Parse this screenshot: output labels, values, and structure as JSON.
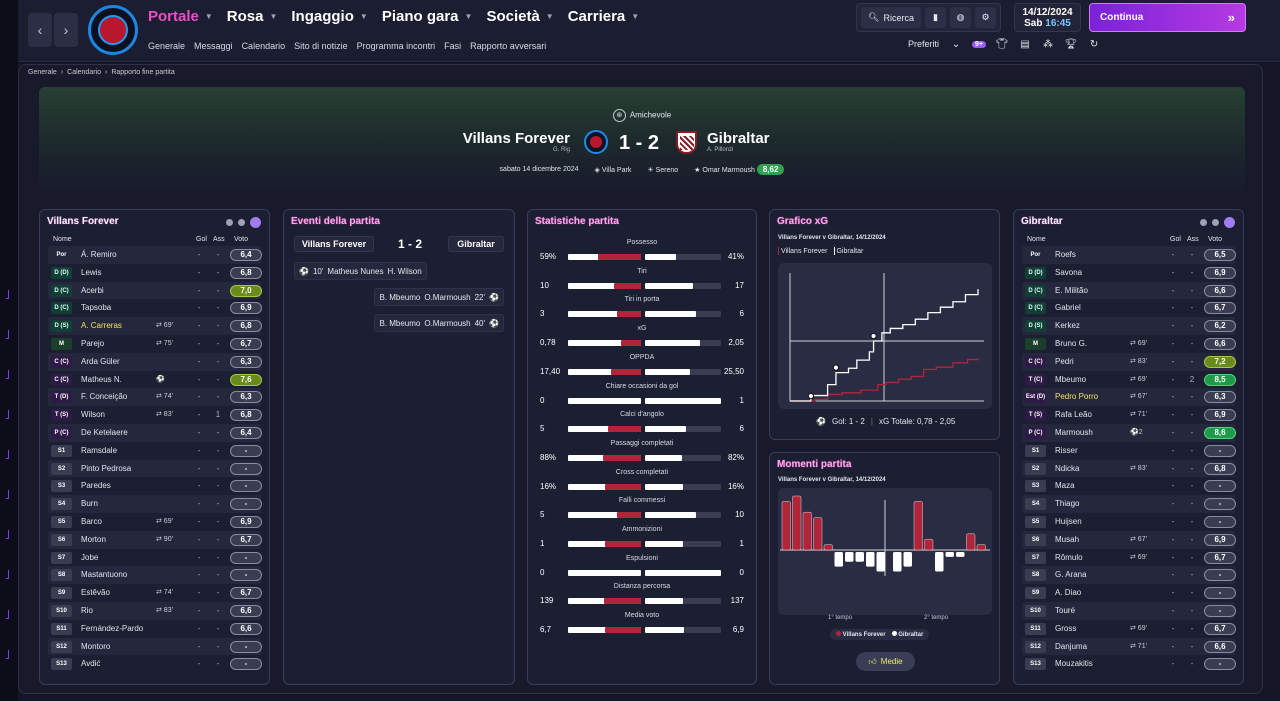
{
  "nav": {
    "back": "‹",
    "forward": "›",
    "menu": [
      "Portale",
      "Rosa",
      "Ingaggio",
      "Piano gara",
      "Società",
      "Carriera"
    ],
    "submenu": [
      "Generale",
      "Messaggi",
      "Calendario",
      "Sito di notizie",
      "Programma incontri",
      "Fasi",
      "Rapporto avversari"
    ],
    "search_label": "Ricerca",
    "date": "14/12/2024",
    "day": "Sab",
    "time": "16:45",
    "continue_label": "Continua",
    "favorites_label": "Preferiti",
    "notif_count": "9+"
  },
  "breadcrumb": [
    "Generale",
    "Calendario",
    "Rapporto fine partita"
  ],
  "match": {
    "competition": "Amichevole",
    "home": "Villans Forever",
    "home_manager": "G. Rig",
    "away": "Gibraltar",
    "away_manager": "A. Pillonzi",
    "score": "1 - 2",
    "date": "sabato 14 dicembre 2024",
    "venue": "Villa Park",
    "weather": "Sereno",
    "motm": "Omar Marmoush",
    "motm_rating": "8,62"
  },
  "colors": {
    "accent": "#e94fc9",
    "home": "#b0253a",
    "away": "#ffffff",
    "good": "#1f9a48"
  },
  "home_panel": {
    "title": "Villans Forever",
    "headers": {
      "name": "Nome",
      "goals": "Gol",
      "assists": "Ass",
      "rating": "Voto"
    },
    "players": [
      {
        "pos": "Por",
        "cls": "gk",
        "name": "Á. Remiro",
        "sub": "",
        "g": "-",
        "a": "-",
        "r": "6,4",
        "rc": ""
      },
      {
        "pos": "D (D)",
        "cls": "d",
        "name": "Lewis",
        "sub": "",
        "g": "-",
        "a": "-",
        "r": "6,8",
        "rc": ""
      },
      {
        "pos": "D (C)",
        "cls": "d",
        "name": "Acerbi",
        "sub": "",
        "g": "-",
        "a": "-",
        "r": "7,0",
        "rc": "ok"
      },
      {
        "pos": "D (C)",
        "cls": "d",
        "name": "Tapsoba",
        "sub": "",
        "g": "-",
        "a": "-",
        "r": "6,9",
        "rc": ""
      },
      {
        "pos": "D (S)",
        "cls": "d",
        "name": "A. Carreras",
        "hl": true,
        "sub": "⇄ 69'",
        "g": "-",
        "a": "-",
        "r": "6,8",
        "rc": ""
      },
      {
        "pos": "M",
        "cls": "m",
        "name": "Parejo",
        "sub": "⇄ 75'",
        "g": "-",
        "a": "-",
        "r": "6,7",
        "rc": ""
      },
      {
        "pos": "C (C)",
        "cls": "a",
        "name": "Arda Güler",
        "sub": "",
        "g": "-",
        "a": "-",
        "r": "6,3",
        "rc": ""
      },
      {
        "pos": "C (C)",
        "cls": "a",
        "name": "Matheus N.",
        "sub": "⚽",
        "g": "-",
        "a": "-",
        "r": "7,6",
        "rc": "ok"
      },
      {
        "pos": "T (D)",
        "cls": "a",
        "name": "F. Conceição",
        "sub": "⇄ 74'",
        "g": "-",
        "a": "-",
        "r": "6,3",
        "rc": ""
      },
      {
        "pos": "T (S)",
        "cls": "a",
        "name": "Wilson",
        "sub": "⇄ 83'",
        "g": "-",
        "a": "1",
        "r": "6,8",
        "rc": ""
      },
      {
        "pos": "P (C)",
        "cls": "a",
        "name": "De Ketelaere",
        "sub": "",
        "g": "-",
        "a": "-",
        "r": "6,4",
        "rc": ""
      },
      {
        "pos": "S1",
        "cls": "sub",
        "name": "Ramsdale",
        "sub": "",
        "g": "-",
        "a": "-",
        "r": "-",
        "rc": ""
      },
      {
        "pos": "S2",
        "cls": "sub",
        "name": "Pinto Pedrosa",
        "sub": "",
        "g": "-",
        "a": "-",
        "r": "-",
        "rc": ""
      },
      {
        "pos": "S3",
        "cls": "sub",
        "name": "Paredes",
        "sub": "",
        "g": "-",
        "a": "-",
        "r": "-",
        "rc": ""
      },
      {
        "pos": "S4",
        "cls": "sub",
        "name": "Burn",
        "sub": "",
        "g": "-",
        "a": "-",
        "r": "-",
        "rc": ""
      },
      {
        "pos": "S5",
        "cls": "sub",
        "name": "Barco",
        "sub": "⇄ 69'",
        "g": "-",
        "a": "-",
        "r": "6,9",
        "rc": ""
      },
      {
        "pos": "S6",
        "cls": "sub",
        "name": "Morton",
        "sub": "⇄ 90'",
        "g": "-",
        "a": "-",
        "r": "6,7",
        "rc": ""
      },
      {
        "pos": "S7",
        "cls": "sub",
        "name": "Jobe",
        "sub": "",
        "g": "-",
        "a": "-",
        "r": "-",
        "rc": ""
      },
      {
        "pos": "S8",
        "cls": "sub",
        "name": "Mastantuono",
        "sub": "",
        "g": "-",
        "a": "-",
        "r": "-",
        "rc": ""
      },
      {
        "pos": "S9",
        "cls": "sub",
        "name": "Estêvão",
        "sub": "⇄ 74'",
        "g": "-",
        "a": "-",
        "r": "6,7",
        "rc": ""
      },
      {
        "pos": "S10",
        "cls": "sub",
        "name": "Rio",
        "sub": "⇄ 83'",
        "g": "-",
        "a": "-",
        "r": "6,6",
        "rc": ""
      },
      {
        "pos": "S11",
        "cls": "sub",
        "name": "Fernández-Pardo",
        "sub": "",
        "g": "-",
        "a": "-",
        "r": "6,6",
        "rc": ""
      },
      {
        "pos": "S12",
        "cls": "sub",
        "name": "Montoro",
        "sub": "",
        "g": "-",
        "a": "-",
        "r": "-",
        "rc": ""
      },
      {
        "pos": "S13",
        "cls": "sub",
        "name": "Avdić",
        "sub": "",
        "g": "-",
        "a": "-",
        "r": "-",
        "rc": ""
      }
    ]
  },
  "away_panel": {
    "title": "Gibraltar",
    "headers": {
      "name": "Nome",
      "goals": "Gol",
      "assists": "Ass",
      "rating": "Voto"
    },
    "players": [
      {
        "pos": "Por",
        "cls": "gk",
        "name": "Roefs",
        "sub": "",
        "g": "-",
        "a": "-",
        "r": "6,5",
        "rc": ""
      },
      {
        "pos": "D (D)",
        "cls": "d",
        "name": "Savona",
        "sub": "",
        "g": "-",
        "a": "-",
        "r": "6,9",
        "rc": ""
      },
      {
        "pos": "D (C)",
        "cls": "d",
        "name": "E. Militão",
        "sub": "",
        "g": "-",
        "a": "-",
        "r": "6,6",
        "rc": ""
      },
      {
        "pos": "D (C)",
        "cls": "d",
        "name": "Gabriel",
        "sub": "",
        "g": "-",
        "a": "-",
        "r": "6,7",
        "rc": ""
      },
      {
        "pos": "D (S)",
        "cls": "d",
        "name": "Kerkez",
        "sub": "",
        "g": "-",
        "a": "-",
        "r": "6,2",
        "rc": ""
      },
      {
        "pos": "M",
        "cls": "m",
        "name": "Bruno G.",
        "sub": "⇄ 69'",
        "g": "-",
        "a": "-",
        "r": "6,6",
        "rc": ""
      },
      {
        "pos": "C (C)",
        "cls": "a",
        "name": "Pedri",
        "sub": "⇄ 83'",
        "g": "-",
        "a": "-",
        "r": "7,2",
        "rc": "ok"
      },
      {
        "pos": "T (C)",
        "cls": "a",
        "name": "Mbeumo",
        "sub": "⇄ 69'",
        "g": "-",
        "a": "2",
        "r": "8,5",
        "rc": "good"
      },
      {
        "pos": "Est (D)",
        "cls": "a",
        "name": "Pedro Porro",
        "hl": true,
        "sub": "⇄ 67'",
        "g": "-",
        "a": "-",
        "r": "6,3",
        "rc": ""
      },
      {
        "pos": "T (S)",
        "cls": "a",
        "name": "Rafa Leão",
        "sub": "⇄ 71'",
        "g": "-",
        "a": "-",
        "r": "6,9",
        "rc": ""
      },
      {
        "pos": "P (C)",
        "cls": "a",
        "name": "Marmoush",
        "sub": "⚽2",
        "g": "-",
        "a": "-",
        "r": "8,6",
        "rc": "good"
      },
      {
        "pos": "S1",
        "cls": "sub",
        "name": "Risser",
        "sub": "",
        "g": "-",
        "a": "-",
        "r": "-",
        "rc": ""
      },
      {
        "pos": "S2",
        "cls": "sub",
        "name": "Ndicka",
        "sub": "⇄ 83'",
        "g": "-",
        "a": "-",
        "r": "6,8",
        "rc": ""
      },
      {
        "pos": "S3",
        "cls": "sub",
        "name": "Maza",
        "sub": "",
        "g": "-",
        "a": "-",
        "r": "-",
        "rc": ""
      },
      {
        "pos": "S4",
        "cls": "sub",
        "name": "Thiago",
        "sub": "",
        "g": "-",
        "a": "-",
        "r": "-",
        "rc": ""
      },
      {
        "pos": "S5",
        "cls": "sub",
        "name": "Huijsen",
        "sub": "",
        "g": "-",
        "a": "-",
        "r": "-",
        "rc": ""
      },
      {
        "pos": "S6",
        "cls": "sub",
        "name": "Musah",
        "sub": "⇄ 67'",
        "g": "-",
        "a": "-",
        "r": "6,9",
        "rc": ""
      },
      {
        "pos": "S7",
        "cls": "sub",
        "name": "Rômulo",
        "sub": "⇄ 69'",
        "g": "-",
        "a": "-",
        "r": "6,7",
        "rc": ""
      },
      {
        "pos": "S8",
        "cls": "sub",
        "name": "G. Arana",
        "sub": "",
        "g": "-",
        "a": "-",
        "r": "-",
        "rc": ""
      },
      {
        "pos": "S9",
        "cls": "sub",
        "name": "A. Diao",
        "sub": "",
        "g": "-",
        "a": "-",
        "r": "-",
        "rc": ""
      },
      {
        "pos": "S10",
        "cls": "sub",
        "name": "Touré",
        "sub": "",
        "g": "-",
        "a": "-",
        "r": "-",
        "rc": ""
      },
      {
        "pos": "S11",
        "cls": "sub",
        "name": "Gross",
        "sub": "⇄ 69'",
        "g": "-",
        "a": "-",
        "r": "6,7",
        "rc": ""
      },
      {
        "pos": "S12",
        "cls": "sub",
        "name": "Danjuma",
        "sub": "⇄ 71'",
        "g": "-",
        "a": "-",
        "r": "6,6",
        "rc": ""
      },
      {
        "pos": "S13",
        "cls": "sub",
        "name": "Mouzakitis",
        "sub": "",
        "g": "-",
        "a": "-",
        "r": "-",
        "rc": ""
      }
    ]
  },
  "events": {
    "title": "Eventi della partita",
    "home": "Villans Forever",
    "away": "Gibraltar",
    "score": "1 - 2",
    "items": [
      {
        "side": "home",
        "minute": "10'",
        "scorer": "Matheus Nunes",
        "assist": "H. Wilson"
      },
      {
        "side": "away",
        "minute": "22'",
        "scorer": "O.Marmoush",
        "assist": "B. Mbeumo"
      },
      {
        "side": "away",
        "minute": "40'",
        "scorer": "O.Marmoush",
        "assist": "B. Mbeumo"
      }
    ]
  },
  "stats": {
    "title": "Statistiche partita",
    "rows": [
      {
        "label": "Possesso",
        "home": "59%",
        "away": "41%",
        "h": 59,
        "a": 41
      },
      {
        "label": "Tiri",
        "home": "10",
        "away": "17",
        "h": 10,
        "a": 17
      },
      {
        "label": "Tiri in porta",
        "home": "3",
        "away": "6",
        "h": 3,
        "a": 6
      },
      {
        "label": "xG",
        "home": "0,78",
        "away": "2,05",
        "h": 0.78,
        "a": 2.05
      },
      {
        "label": "OPPDA",
        "home": "17,40",
        "away": "25,50",
        "h": 17.4,
        "a": 25.5
      },
      {
        "label": "Chiare occasioni da gol",
        "home": "0",
        "away": "1",
        "h": 0,
        "a": 1
      },
      {
        "label": "Calci d'angolo",
        "home": "5",
        "away": "6",
        "h": 5,
        "a": 6
      },
      {
        "label": "Passaggi completati",
        "home": "88%",
        "away": "82%",
        "h": 88,
        "a": 82
      },
      {
        "label": "Cross completati",
        "home": "16%",
        "away": "16%",
        "h": 16,
        "a": 16
      },
      {
        "label": "Falli commessi",
        "home": "5",
        "away": "10",
        "h": 5,
        "a": 10
      },
      {
        "label": "Ammonizioni",
        "home": "1",
        "away": "1",
        "h": 1,
        "a": 1
      },
      {
        "label": "Espulsioni",
        "home": "0",
        "away": "0",
        "h": 0,
        "a": 0
      },
      {
        "label": "Distanza percorsa",
        "home": "139",
        "away": "137",
        "h": 139,
        "a": 137
      },
      {
        "label": "Media voto",
        "home": "6,7",
        "away": "6,9",
        "h": 6.7,
        "a": 6.9
      }
    ]
  },
  "xg": {
    "title": "Grafico xG",
    "subtitle": "Villans Forever v Gibraltar, 14/12/2024",
    "legend_home": "Villans Forever",
    "legend_away": "Gibraltar",
    "goals_label": "Gol: 1 - 2",
    "xg_label": "xG Totale: 0,78  -  2,05"
  },
  "chart_data": [
    {
      "type": "line",
      "title": "Grafico xG",
      "x_range": [
        0,
        90
      ],
      "series": [
        {
          "name": "Villans Forever",
          "color": "#b0253a",
          "points": [
            [
              0,
              0
            ],
            [
              12,
              0.03
            ],
            [
              18,
              0.12
            ],
            [
              25,
              0.15
            ],
            [
              34,
              0.2
            ],
            [
              42,
              0.3
            ],
            [
              46,
              0.34
            ],
            [
              52,
              0.4
            ],
            [
              58,
              0.45
            ],
            [
              64,
              0.58
            ],
            [
              70,
              0.62
            ],
            [
              78,
              0.7
            ],
            [
              85,
              0.76
            ],
            [
              90,
              0.78
            ]
          ]
        },
        {
          "name": "Gibraltar",
          "color": "#ffffff",
          "points": [
            [
              0,
              0
            ],
            [
              10,
              0.1
            ],
            [
              18,
              0.3
            ],
            [
              22,
              0.52
            ],
            [
              28,
              0.6
            ],
            [
              32,
              0.75
            ],
            [
              38,
              0.9
            ],
            [
              40,
              1.1
            ],
            [
              44,
              1.25
            ],
            [
              48,
              1.33
            ],
            [
              54,
              1.4
            ],
            [
              60,
              1.5
            ],
            [
              66,
              1.62
            ],
            [
              72,
              1.72
            ],
            [
              78,
              1.82
            ],
            [
              84,
              1.95
            ],
            [
              90,
              2.05
            ]
          ]
        }
      ],
      "goals": [
        {
          "team": "Villans Forever",
          "minute": 10
        },
        {
          "team": "Gibraltar",
          "minute": 22
        },
        {
          "team": "Gibraltar",
          "minute": 40
        }
      ]
    },
    {
      "type": "bar",
      "title": "Momenti partita",
      "subtitle": "Villans Forever v Gibraltar, 14/12/2024",
      "x_labels": [
        "1° tempo",
        "2° tempo"
      ],
      "series": [
        {
          "name": "Villans Forever",
          "color": "#b0253a",
          "values": [
            9,
            10,
            7,
            6,
            1,
            0,
            0,
            0,
            0,
            0,
            0,
            0,
            9,
            2,
            0,
            0,
            0,
            3,
            1,
            0
          ]
        },
        {
          "name": "Gibraltar",
          "color": "#ffffff",
          "values": [
            0,
            0,
            0,
            0,
            0,
            3,
            2,
            2,
            3,
            4,
            4,
            3,
            0,
            0,
            4,
            1,
            1,
            0,
            0,
            0
          ]
        }
      ],
      "button": "Medie"
    }
  ],
  "moments": {
    "title": "Momenti partita",
    "subtitle": "Villans Forever v Gibraltar, 14/12/2024",
    "half1": "1° tempo",
    "half2": "2° tempo",
    "legend_home": "Villans Forever",
    "legend_away": "Gibraltar",
    "button": "Medie"
  }
}
